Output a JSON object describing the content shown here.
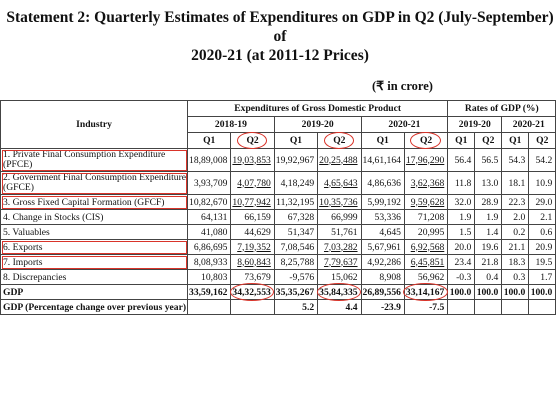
{
  "title_line1": "Statement 2: Quarterly Estimates of Expenditures on GDP in Q2 (July-September) of",
  "title_line2": "2020-21 (at 2011-12 Prices)",
  "unit": "(₹ in crore)",
  "header": {
    "industry": "Industry",
    "expenditures": "Expenditures of Gross Domestic Product",
    "rates": "Rates of GDP (%)",
    "years": [
      "2018-19",
      "2019-20",
      "2020-21"
    ],
    "rate_years": [
      "2019-20",
      "2020-21"
    ],
    "quarters": [
      "Q1",
      "Q2",
      "Q1",
      "Q2",
      "Q1",
      "Q2",
      "Q1",
      "Q2",
      "Q1",
      "Q2"
    ]
  },
  "rows": [
    {
      "label": "1. Private Final Consumption Expenditure (PFCE)",
      "values": [
        "18,89,008",
        "19,03,853",
        "19,92,967",
        "20,25,488",
        "14,61,164",
        "17,96,290",
        "56.4",
        "56.5",
        "54.3",
        "54.2"
      ]
    },
    {
      "label": "2. Government Final Consumption Expenditure (GFCE)",
      "values": [
        "3,93,709",
        "4,07,780",
        "4,18,249",
        "4,65,643",
        "4,86,636",
        "3,62,368",
        "11.8",
        "13.0",
        "18.1",
        "10.9"
      ]
    },
    {
      "label": "3. Gross Fixed Capital Formation (GFCF)",
      "values": [
        "10,82,670",
        "10,77,942",
        "11,32,195",
        "10,35,736",
        "5,99,192",
        "9,59,628",
        "32.0",
        "28.9",
        "22.3",
        "29.0"
      ]
    },
    {
      "label": "4. Change in Stocks (CIS)",
      "values": [
        "64,131",
        "66,159",
        "67,328",
        "66,999",
        "53,336",
        "71,208",
        "1.9",
        "1.9",
        "2.0",
        "2.1"
      ]
    },
    {
      "label": "5. Valuables",
      "values": [
        "41,080",
        "44,629",
        "51,347",
        "51,761",
        "4,645",
        "20,995",
        "1.5",
        "1.4",
        "0.2",
        "0.6"
      ]
    },
    {
      "label": "6. Exports",
      "values": [
        "6,86,695",
        "7,19,352",
        "7,08,546",
        "7,03,282",
        "5,67,961",
        "6,92,568",
        "20.0",
        "19.6",
        "21.1",
        "20.9"
      ]
    },
    {
      "label": "7. Imports",
      "values": [
        "8,08,933",
        "8,60,843",
        "8,25,788",
        "7,79,637",
        "4,92,286",
        "6,45,851",
        "23.4",
        "21.8",
        "18.3",
        "19.5"
      ]
    },
    {
      "label": "8. Discrepancies",
      "values": [
        "10,803",
        "73,679",
        "-9,576",
        "15,062",
        "8,908",
        "56,962",
        "-0.3",
        "0.4",
        "0.3",
        "1.7"
      ]
    }
  ],
  "gdp": {
    "label": "GDP",
    "values": [
      "33,59,162",
      "34,32,553",
      "35,35,267",
      "35,84,335",
      "26,89,556",
      "33,14,167",
      "100.0",
      "100.0",
      "100.0",
      "100.0"
    ]
  },
  "gdp_change": {
    "label": "GDP (Percentage change over previous year)",
    "values": [
      "",
      "",
      "5.2",
      "4.4",
      "-23.9",
      "-7.5",
      "",
      "",
      "",
      ""
    ]
  },
  "colors": {
    "highlight": "#d9342a",
    "border": "#444444"
  }
}
